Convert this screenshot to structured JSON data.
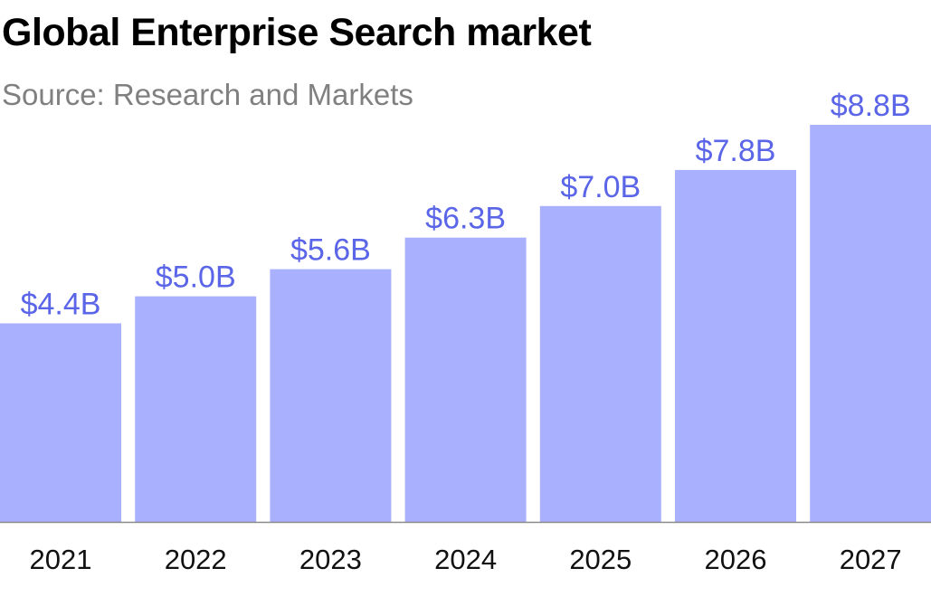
{
  "chart_data": {
    "type": "bar",
    "title": "Global Enterprise Search market",
    "subtitle": "Source: Research and Markets",
    "categories": [
      "2021",
      "2022",
      "2023",
      "2024",
      "2025",
      "2026",
      "2027"
    ],
    "values": [
      4.4,
      5.0,
      5.6,
      6.3,
      7.0,
      7.8,
      8.8
    ],
    "data_labels": [
      "$4.4B",
      "$5.0B",
      "$5.6B",
      "$6.3B",
      "$7.0B",
      "$7.8B",
      "$8.8B"
    ],
    "xlabel": "",
    "ylabel": "",
    "ylim": [
      0,
      8.8
    ],
    "grid": false,
    "legend": "none",
    "colors": {
      "bar": "#a9b0fd",
      "label": "#5b65e8",
      "baseline": "#8a8a8a"
    }
  }
}
